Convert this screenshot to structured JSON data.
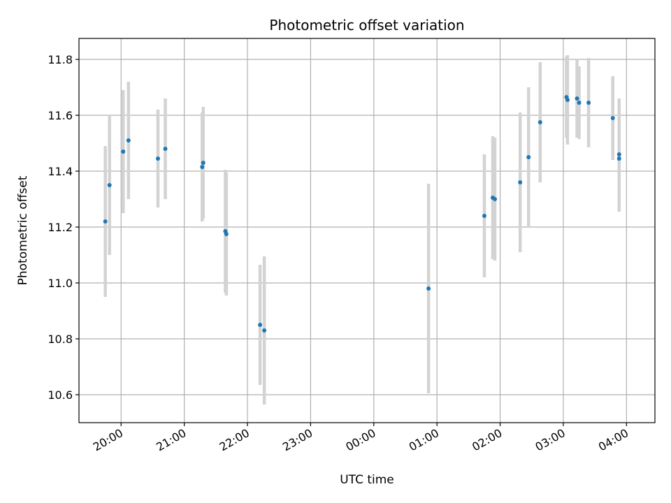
{
  "chart_data": {
    "type": "scatter",
    "title": "Photometric offset variation",
    "xlabel": "UTC time",
    "ylabel": "Photometric offset",
    "x_unit": "UTC clock time (hours past midnight of first night; values above 24 are next day)",
    "xlim": [
      "19:20",
      "04:27"
    ],
    "ylim": [
      10.5,
      11.875
    ],
    "x_ticks": [
      "20:00",
      "21:00",
      "22:00",
      "23:00",
      "00:00",
      "01:00",
      "02:00",
      "03:00",
      "04:00"
    ],
    "y_ticks": [
      "10.6",
      "10.8",
      "11.0",
      "11.2",
      "11.4",
      "11.6",
      "11.8"
    ],
    "grid": true,
    "marker_color": "#1f77b4",
    "errorbar_color": "#d3d3d3",
    "points": [
      {
        "t": "19:45",
        "y": 11.22,
        "yerr": 0.27
      },
      {
        "t": "19:49",
        "y": 11.35,
        "yerr": 0.25
      },
      {
        "t": "20:02",
        "y": 11.47,
        "yerr": 0.22
      },
      {
        "t": "20:07",
        "y": 11.51,
        "yerr": 0.21
      },
      {
        "t": "20:35",
        "y": 11.445,
        "yerr": 0.175
      },
      {
        "t": "20:42",
        "y": 11.48,
        "yerr": 0.18
      },
      {
        "t": "21:17",
        "y": 11.415,
        "yerr": 0.195
      },
      {
        "t": "21:18",
        "y": 11.43,
        "yerr": 0.2
      },
      {
        "t": "21:39",
        "y": 11.185,
        "yerr": 0.22
      },
      {
        "t": "21:40",
        "y": 11.175,
        "yerr": 0.22
      },
      {
        "t": "22:12",
        "y": 10.85,
        "yerr": 0.215
      },
      {
        "t": "22:16",
        "y": 10.83,
        "yerr": 0.265
      },
      {
        "t": "00:52",
        "y": 10.98,
        "yerr": 0.375
      },
      {
        "t": "01:45",
        "y": 11.24,
        "yerr": 0.22
      },
      {
        "t": "01:53",
        "y": 11.305,
        "yerr": 0.22
      },
      {
        "t": "01:55",
        "y": 11.3,
        "yerr": 0.22
      },
      {
        "t": "02:19",
        "y": 11.36,
        "yerr": 0.25
      },
      {
        "t": "02:27",
        "y": 11.45,
        "yerr": 0.25
      },
      {
        "t": "02:38",
        "y": 11.575,
        "yerr": 0.215
      },
      {
        "t": "03:03",
        "y": 11.665,
        "yerr": 0.145
      },
      {
        "t": "03:04",
        "y": 11.655,
        "yerr": 0.16
      },
      {
        "t": "03:13",
        "y": 11.66,
        "yerr": 0.14
      },
      {
        "t": "03:15",
        "y": 11.645,
        "yerr": 0.13
      },
      {
        "t": "03:24",
        "y": 11.645,
        "yerr": 0.16
      },
      {
        "t": "03:47",
        "y": 11.59,
        "yerr": 0.15
      },
      {
        "t": "03:53",
        "y": 11.445,
        "yerr": 0.19
      },
      {
        "t": "03:53",
        "y": 11.46,
        "yerr": 0.2
      }
    ]
  }
}
